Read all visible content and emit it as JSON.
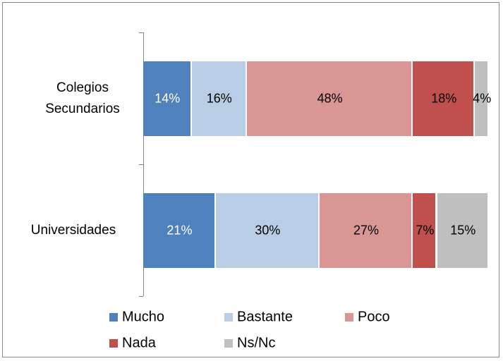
{
  "chart_data": {
    "type": "stacked-bar-horizontal",
    "categories": [
      "Colegios Secundarios",
      "Universidades"
    ],
    "xlim": [
      0,
      100
    ],
    "series": [
      {
        "name": "Mucho",
        "color": "#4f81bd",
        "values": [
          14,
          21
        ],
        "value_labels": [
          "14%",
          "21%"
        ]
      },
      {
        "name": "Bastante",
        "color": "#b9cde5",
        "values": [
          16,
          30
        ],
        "value_labels": [
          "16%",
          "30%"
        ]
      },
      {
        "name": "Poco",
        "color": "#d99694",
        "values": [
          48,
          27
        ],
        "value_labels": [
          "48%",
          "27%"
        ]
      },
      {
        "name": "Nada",
        "color": "#c0504d",
        "values": [
          18,
          7
        ],
        "value_labels": [
          "18%",
          "7%"
        ]
      },
      {
        "name": "Ns/Nc",
        "color": "#bfbfbf",
        "values": [
          4,
          15
        ],
        "value_labels": [
          "4%",
          "15%"
        ]
      }
    ]
  }
}
